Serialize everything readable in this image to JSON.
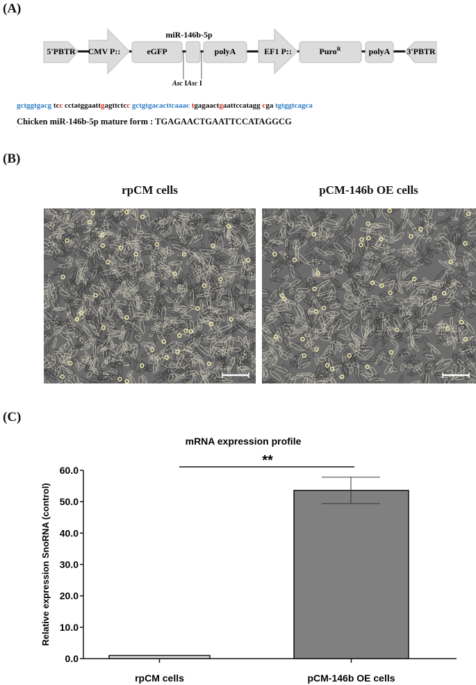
{
  "panels": {
    "a": "(A)",
    "b": "(B)",
    "c": "(C)"
  },
  "construct": {
    "elements": [
      "5'PBTR",
      "CMV P::",
      "eGFP",
      "polyA",
      "EF1 P::",
      "Puro",
      "polyA",
      "3'PBTR"
    ],
    "puro_superscript": "R",
    "mir_label": "miR-146b-5p",
    "site_label_italic": "Asc",
    "site_label_suffix": " I",
    "colors": {
      "box": "#dcdcdc",
      "box_edge": "#bdbdbd"
    }
  },
  "sequence": [
    {
      "t": "gctggtgacg",
      "c": "blue"
    },
    {
      "t": " tc",
      "c": "blk"
    },
    {
      "t": "c",
      "c": "red"
    },
    {
      "t": " cctatggaatt",
      "c": "blk"
    },
    {
      "t": "g",
      "c": "red"
    },
    {
      "t": "agttctc",
      "c": "blk"
    },
    {
      "t": "c",
      "c": "red"
    },
    {
      "t": " gctgtgacacttcaaac",
      "c": "blue"
    },
    {
      "t": " t",
      "c": "red"
    },
    {
      "t": "gagaact",
      "c": "blk"
    },
    {
      "t": "g",
      "c": "red"
    },
    {
      "t": "aattccatagg ",
      "c": "blk"
    },
    {
      "t": "c",
      "c": "red"
    },
    {
      "t": "ga",
      "c": "blk"
    },
    {
      "t": " tgtggtcagca",
      "c": "blue"
    }
  ],
  "sequence_colors": {
    "blue": "#2a7bc4",
    "red": "#e0261b"
  },
  "mature_form": "Chicken miR-146b-5p mature form : TGAGAACTGAATTCCATAGGCG",
  "micrographs": [
    {
      "title": "rpCM cells"
    },
    {
      "title": "pCM-146b OE cells"
    }
  ],
  "chart_data": {
    "type": "bar",
    "title": "mRNA expression profile",
    "xlabel": "",
    "ylabel": "Relative expression SnoRNA (control)",
    "categories": [
      "rpCM cells",
      "pCM-146b OE cells"
    ],
    "values": [
      1.0,
      53.6
    ],
    "error": [
      0,
      4.2
    ],
    "bar_colors": [
      "#d6d6d6",
      "#808080"
    ],
    "ylim": [
      0,
      60
    ],
    "yticks": [
      "0.0",
      "10.0",
      "20.0",
      "30.0",
      "40.0",
      "50.0",
      "60.0"
    ],
    "grid": false,
    "significance": "**"
  }
}
